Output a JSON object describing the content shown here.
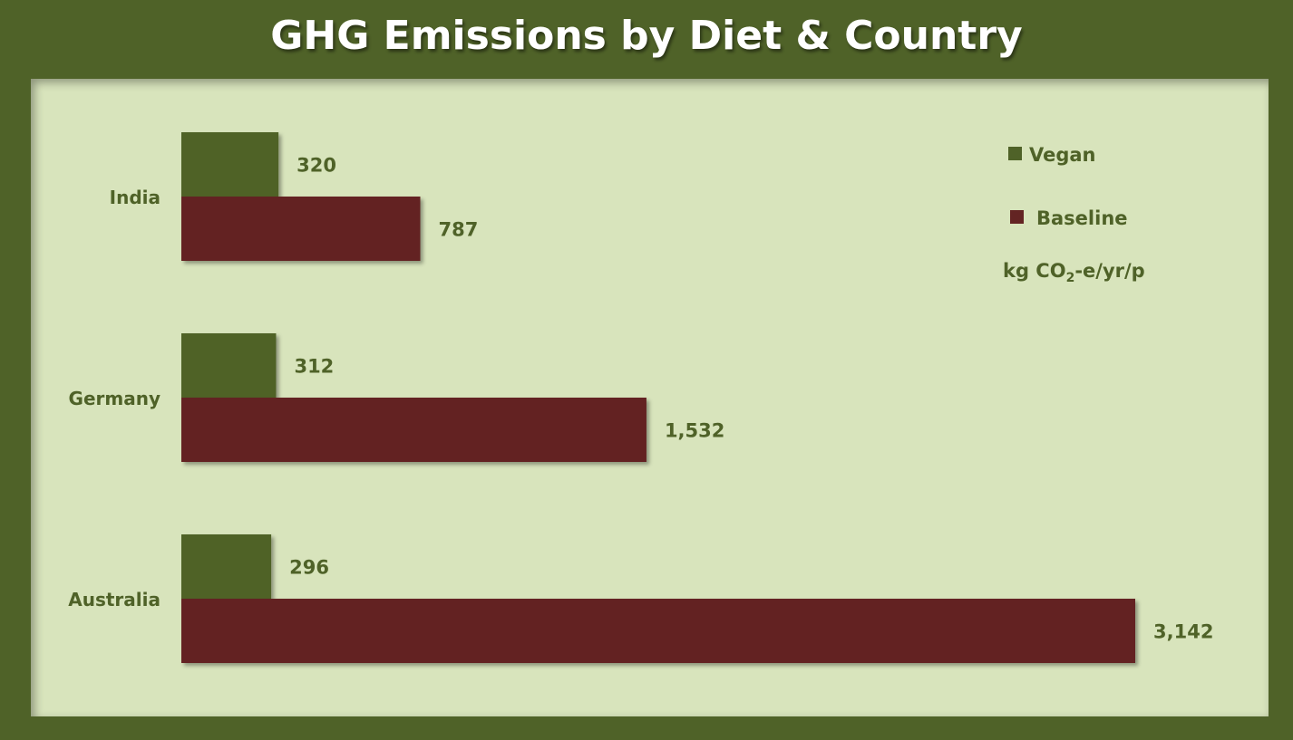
{
  "chart_data": {
    "type": "bar",
    "orientation": "horizontal",
    "title": "GHG Emissions by Diet & Country",
    "categories": [
      "India",
      "Germany",
      "Australia"
    ],
    "series": [
      {
        "name": "Vegan",
        "values": [
          320,
          312,
          296
        ],
        "labels": [
          "320",
          "312",
          "296"
        ],
        "color": "#4f6228"
      },
      {
        "name": "Baseline",
        "values": [
          787,
          1532,
          3142
        ],
        "labels": [
          "787",
          "1,532",
          "3,142"
        ],
        "color": "#632423"
      }
    ],
    "unit_label": {
      "prefix": "kg CO",
      "subscript": "2",
      "suffix": "-e/yr/p"
    },
    "legend_position": "top-right",
    "xlim": [
      0,
      3142
    ],
    "grid": false
  },
  "colors": {
    "background": "#4f6228",
    "plot_area": "#d8e4bc",
    "text": "#4f6228",
    "title": "#ffffff"
  }
}
